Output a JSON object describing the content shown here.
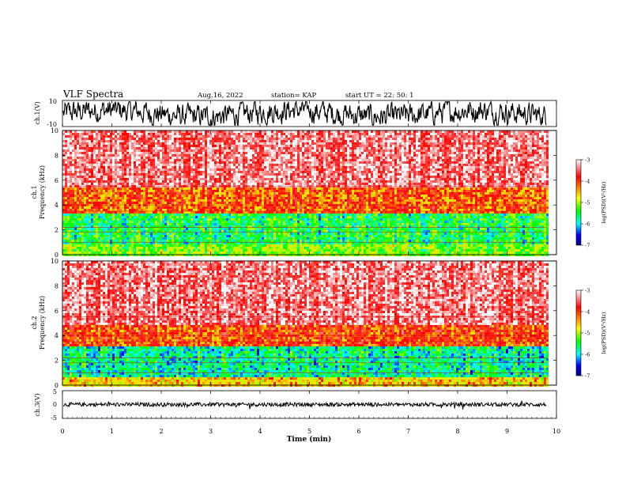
{
  "header": {
    "title": "VLF Spectra",
    "date": "Aug.16, 2022",
    "station": "station= KAP",
    "start": "start  UT =   22: 50: 1"
  },
  "colorbar": {
    "label": "log(PSD)(V²/Hz)",
    "ticks": [
      "-3",
      "-4",
      "-5",
      "-6",
      "-7"
    ],
    "colors": [
      "#ffffff",
      "#ff0000",
      "#ffff00",
      "#00ff00",
      "#00ffff",
      "#0000ff",
      "#000080"
    ]
  },
  "chart_data": [
    {
      "type": "line",
      "panel": "waveform-ch1",
      "ylabel": "ch.1(V)",
      "ylim": [
        -10,
        10
      ],
      "yticks": [
        "10",
        "-10"
      ],
      "xlim": [
        0,
        10
      ],
      "description_values": "dense noisy waveform, amplitude mostly between -8 and 8 V, spanning 0 to ~9.8 min"
    },
    {
      "type": "heatmap",
      "panel": "spectrogram-ch1",
      "ylabel": "ch.1",
      "ylabel2": "Frequency (kHz)",
      "ylim": [
        0,
        10
      ],
      "yticks": [
        "0",
        "2",
        "4",
        "6",
        "8",
        "10"
      ],
      "xlim": [
        0,
        10
      ],
      "xdata_end_min": 9.8,
      "bands": [
        {
          "fmin": 0,
          "fmax": 1.0,
          "level": -5.2
        },
        {
          "fmin": 1.0,
          "fmax": 3.5,
          "level": -5.6
        },
        {
          "fmin": 3.5,
          "fmax": 5.5,
          "level": -4.2
        },
        {
          "fmin": 5.5,
          "fmax": 10,
          "level": -3.4
        }
      ]
    },
    {
      "type": "heatmap",
      "panel": "spectrogram-ch2",
      "ylabel": "ch.2",
      "ylabel2": "Frequency (kHz)",
      "ylim": [
        0,
        10
      ],
      "yticks": [
        "0",
        "2",
        "4",
        "6",
        "8",
        "10"
      ],
      "xlim": [
        0,
        10
      ],
      "xdata_end_min": 9.8,
      "bands": [
        {
          "fmin": 0,
          "fmax": 0.8,
          "level": -4.6
        },
        {
          "fmin": 0.8,
          "fmax": 3.2,
          "level": -5.8
        },
        {
          "fmin": 3.2,
          "fmax": 5.0,
          "level": -4.1
        },
        {
          "fmin": 5.0,
          "fmax": 10,
          "level": -3.4
        }
      ]
    },
    {
      "type": "line",
      "panel": "waveform-ch3",
      "ylabel": "ch.3(V)",
      "ylim": [
        -5,
        5
      ],
      "yticks": [
        "5",
        "0",
        "-5"
      ],
      "xlim": [
        0,
        10
      ],
      "xlabel": "Time (min)",
      "xticks": [
        "0",
        "1",
        "2",
        "3",
        "4",
        "5",
        "6",
        "7",
        "8",
        "9",
        "10"
      ],
      "description_values": "nearly constant signal around 0 V with small spikes"
    }
  ]
}
